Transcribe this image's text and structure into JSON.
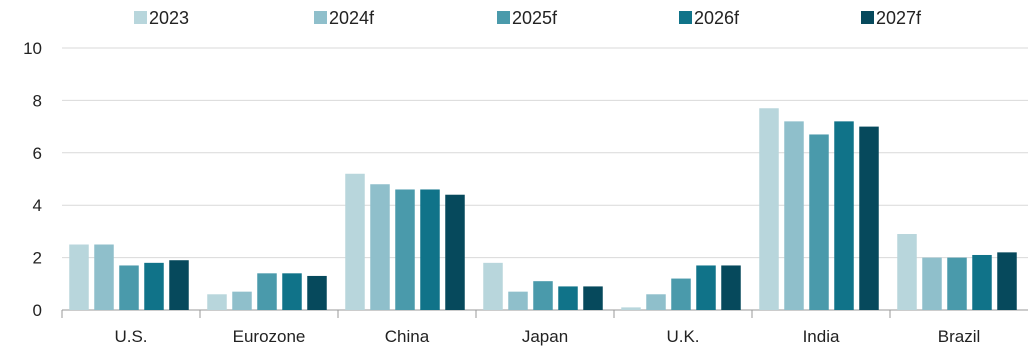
{
  "chart_data": {
    "type": "bar",
    "title": "",
    "xlabel": "",
    "ylabel": "",
    "ylim": [
      0,
      10
    ],
    "yticks": [
      "0",
      "2",
      "4",
      "6",
      "8",
      "10"
    ],
    "grid": "horizontal",
    "legend_position": "top",
    "categories": [
      "U.S.",
      "Eurozone",
      "China",
      "Japan",
      "U.K.",
      "India",
      "Brazil"
    ],
    "series": [
      {
        "name": "2023",
        "color": "#b8d6dc",
        "values": [
          2.5,
          0.6,
          5.2,
          1.8,
          0.1,
          7.7,
          2.9
        ]
      },
      {
        "name": "2024f",
        "color": "#8fbfcb",
        "values": [
          2.5,
          0.7,
          4.8,
          0.7,
          0.6,
          7.2,
          2.0
        ]
      },
      {
        "name": "2025f",
        "color": "#4a9aab",
        "values": [
          1.7,
          1.4,
          4.6,
          1.1,
          1.2,
          6.7,
          2.0
        ]
      },
      {
        "name": "2026f",
        "color": "#107389",
        "values": [
          1.8,
          1.4,
          4.6,
          0.9,
          1.7,
          7.2,
          2.1
        ]
      },
      {
        "name": "2027f",
        "color": "#06495c",
        "values": [
          1.9,
          1.3,
          4.4,
          0.9,
          1.7,
          7.0,
          2.2
        ]
      }
    ]
  }
}
